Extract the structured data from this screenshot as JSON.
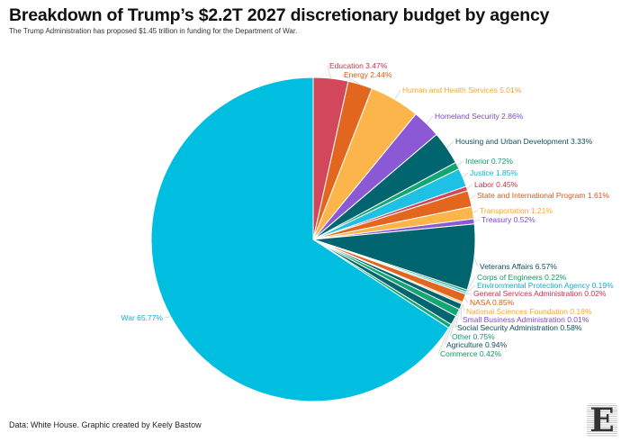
{
  "title": "Breakdown of Trump’s $2.2T 2027 discretionary budget by agency",
  "subtitle": "The Trump Administration has proposed $1.45 trillion in funding for the Department of War.",
  "footer": "Data: White House. Graphic created by Keely Bastow",
  "logo": {
    "letter": "E",
    "kind": "publication logo"
  },
  "chart_data": {
    "type": "pie",
    "title": "Breakdown of Trump’s $2.2T 2027 discretionary budget by agency",
    "unit": "%",
    "start": "top, clockwise",
    "slices": [
      {
        "label": "Education",
        "value": 3.47,
        "color": "#d2475c"
      },
      {
        "label": "Energy",
        "value": 2.44,
        "color": "#e3661f"
      },
      {
        "label": "Human and Health Services",
        "value": 5.01,
        "color": "#fbb54a"
      },
      {
        "label": "Homeland Security",
        "value": 2.86,
        "color": "#8b58d6"
      },
      {
        "label": "Housing and Urban Development",
        "value": 3.33,
        "color": "#00656f"
      },
      {
        "label": "Interior",
        "value": 0.72,
        "color": "#12a672"
      },
      {
        "label": "Justice",
        "value": 1.85,
        "color": "#1ec1e3"
      },
      {
        "label": "Labor",
        "value": 0.45,
        "color": "#d2475c"
      },
      {
        "label": "State and International Program",
        "value": 1.61,
        "color": "#e3661f"
      },
      {
        "label": "Transportation",
        "value": 1.21,
        "color": "#fbb54a"
      },
      {
        "label": "Treasury",
        "value": 0.52,
        "color": "#8b58d6"
      },
      {
        "label": "Veterans Affairs",
        "value": 6.57,
        "color": "#00656f"
      },
      {
        "label": "Corps of Engineers",
        "value": 0.22,
        "color": "#12a672"
      },
      {
        "label": "Environmental Protection Agency",
        "value": 0.19,
        "color": "#1ec1e3"
      },
      {
        "label": "General Services Administration",
        "value": 0.02,
        "color": "#d2475c"
      },
      {
        "label": "NASA",
        "value": 0.85,
        "color": "#e3661f"
      },
      {
        "label": "National Sciences Foundation",
        "value": 0.18,
        "color": "#fbb54a"
      },
      {
        "label": "Small Business Administration",
        "value": 0.01,
        "color": "#8b58d6"
      },
      {
        "label": "Social Security Administration",
        "value": 0.58,
        "color": "#00656f"
      },
      {
        "label": "Other",
        "value": 0.75,
        "color": "#12a672"
      },
      {
        "label": "Agriculture",
        "value": 0.94,
        "color": "#00656f"
      },
      {
        "label": "Commerce",
        "value": 0.42,
        "color": "#12a672"
      },
      {
        "label": "War",
        "value": 65.77,
        "color": "#00bee0"
      }
    ]
  }
}
